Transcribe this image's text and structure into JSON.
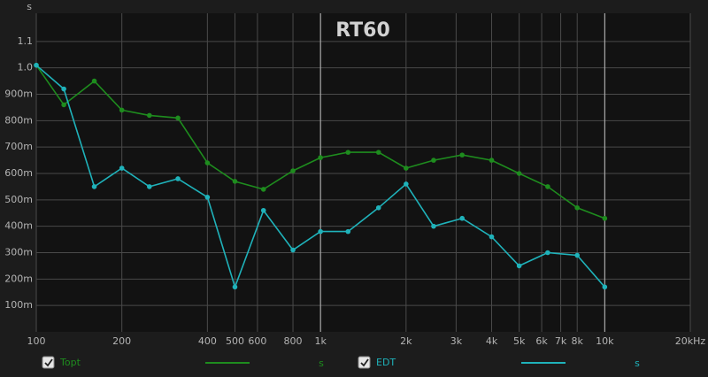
{
  "chart_data": {
    "type": "line",
    "title": "RT60",
    "y_unit": "s",
    "x": [
      100,
      125,
      160,
      200,
      250,
      315,
      400,
      500,
      630,
      800,
      1000,
      1250,
      1600,
      2000,
      2500,
      3150,
      4000,
      5000,
      6300,
      8000,
      10000
    ],
    "series": [
      {
        "name": "Topt",
        "color": "#1e8c1e",
        "values": [
          1.01,
          0.86,
          0.95,
          0.84,
          0.82,
          0.81,
          0.64,
          0.57,
          0.54,
          0.61,
          0.66,
          0.68,
          0.68,
          0.62,
          0.65,
          0.67,
          0.65,
          0.6,
          0.55,
          0.47,
          0.43
        ]
      },
      {
        "name": "EDT",
        "color": "#1fb2ba",
        "values": [
          1.01,
          0.92,
          0.55,
          0.62,
          0.55,
          0.58,
          0.51,
          0.17,
          0.46,
          0.31,
          0.38,
          0.38,
          0.47,
          0.56,
          0.4,
          0.43,
          0.36,
          0.25,
          0.3,
          0.29,
          0.17
        ]
      }
    ],
    "xscale": "log",
    "xlim": [
      100,
      20000
    ],
    "xticks": [
      100,
      200,
      400,
      500,
      600,
      800,
      {
        "value": 1000,
        "label": "1k"
      },
      {
        "value": 2000,
        "label": "2k"
      },
      {
        "value": 3000,
        "label": "3k"
      },
      {
        "value": 4000,
        "label": "4k"
      },
      {
        "value": 5000,
        "label": "5k"
      },
      {
        "value": 6000,
        "label": "6k"
      },
      {
        "value": 7000,
        "label": "7k"
      },
      {
        "value": 8000,
        "label": "8k"
      },
      {
        "value": 10000,
        "label": "10k"
      },
      {
        "value": 20000,
        "label": "20kHz"
      }
    ],
    "xgrid_major": [
      1000,
      10000
    ],
    "ylim": [
      0,
      1.2
    ],
    "yticks": [
      {
        "value": 0.1,
        "label": "100m"
      },
      {
        "value": 0.2,
        "label": "200m"
      },
      {
        "value": 0.3,
        "label": "300m"
      },
      {
        "value": 0.4,
        "label": "400m"
      },
      {
        "value": 0.5,
        "label": "500m"
      },
      {
        "value": 0.6,
        "label": "600m"
      },
      {
        "value": 0.7,
        "label": "700m"
      },
      {
        "value": 0.8,
        "label": "800m"
      },
      {
        "value": 0.9,
        "label": "900m"
      },
      {
        "value": 1.0,
        "label": "1.0"
      },
      1.1
    ],
    "grid": true
  }
}
